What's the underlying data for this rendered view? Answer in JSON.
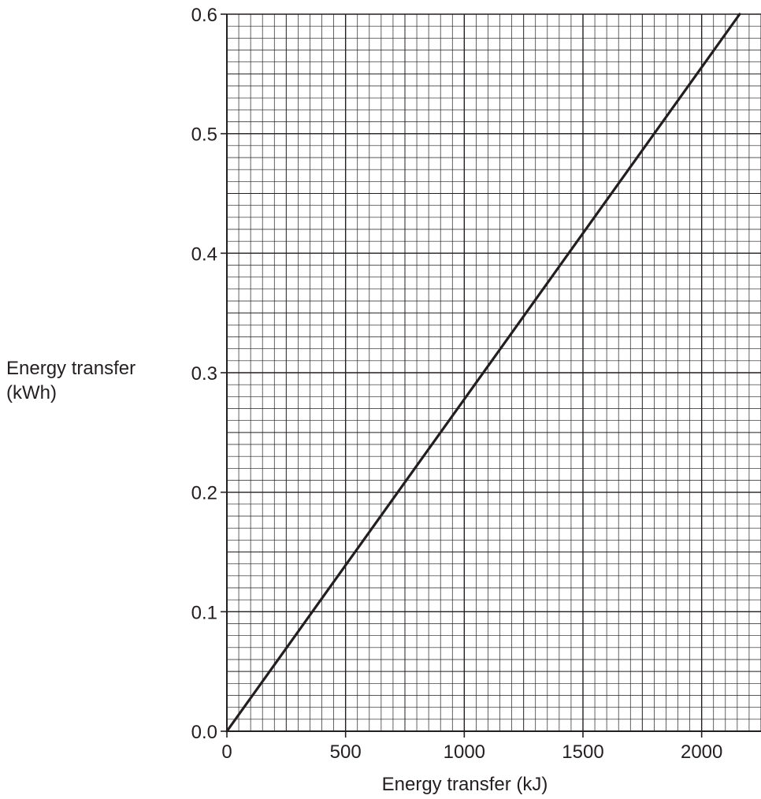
{
  "chart_data": {
    "type": "line",
    "title": "",
    "xlabel": "Energy transfer (kJ)",
    "ylabel_lines": [
      "Energy transfer",
      "(kWh)"
    ],
    "xlim": [
      0,
      2250
    ],
    "ylim": [
      0,
      0.6
    ],
    "x_ticks": [
      0,
      500,
      1000,
      1500,
      2000
    ],
    "x_tick_labels": [
      "0",
      "500",
      "1000",
      "1500",
      "2000"
    ],
    "y_ticks": [
      0.0,
      0.1,
      0.2,
      0.3,
      0.4,
      0.5,
      0.6
    ],
    "y_tick_labels": [
      "0.0",
      "0.1",
      "0.2",
      "0.3",
      "0.4",
      "0.5",
      "0.6"
    ],
    "grid": true,
    "x_minor_step": 50,
    "y_minor_step": 0.01,
    "series": [
      {
        "x": [
          0,
          2160
        ],
        "y": [
          0,
          0.6
        ]
      }
    ],
    "colors": {
      "line": "#231f20",
      "grid": "#231f20",
      "background": "#ffffff"
    }
  }
}
